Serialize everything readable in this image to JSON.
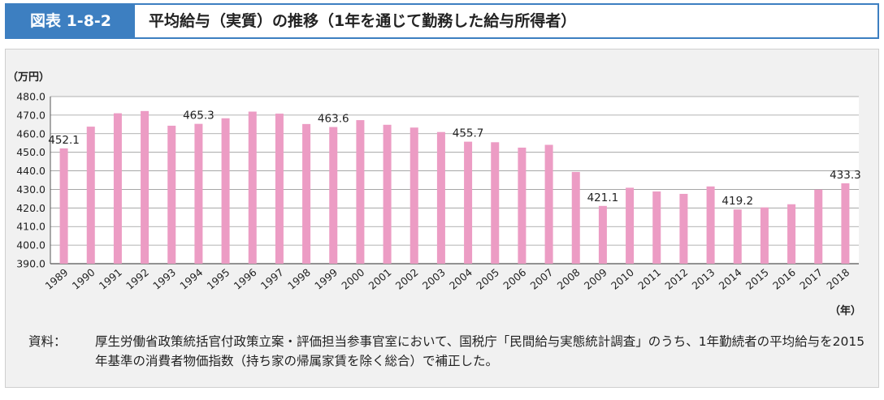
{
  "figure_label": "図表 1-8-2",
  "figure_title": "平均給与（実質）の推移（1年を通じて勤務した給与所得者）",
  "note_head": "資料：",
  "note_body": "厚生労働省政策統括官付政策立案・評価担当参事官室において、国税庁「民間給与実態統計調査」のうち、1年勤続者の平均給与を2015年基準の消費者物価指数（持ち家の帰属家賃を除く総合）で補正した。",
  "colors": {
    "bar": "#ec9cc4",
    "accent": "#3d7fc1",
    "panel": "#f1f1f1"
  },
  "chart_data": {
    "type": "bar",
    "ylabel": "（万円）",
    "xlabel": "（年）",
    "ylim": [
      390.0,
      480.0
    ],
    "yticks": [
      "390.0",
      "400.0",
      "410.0",
      "420.0",
      "430.0",
      "440.0",
      "450.0",
      "460.0",
      "470.0",
      "480.0"
    ],
    "grid": true,
    "categories": [
      "1989",
      "1990",
      "1991",
      "1992",
      "1993",
      "1994",
      "1995",
      "1996",
      "1997",
      "1998",
      "1999",
      "2000",
      "2001",
      "2002",
      "2003",
      "2004",
      "2005",
      "2006",
      "2007",
      "2008",
      "2009",
      "2010",
      "2011",
      "2012",
      "2013",
      "2014",
      "2015",
      "2016",
      "2017",
      "2018"
    ],
    "values": [
      452.1,
      463.8,
      471.0,
      472.2,
      464.3,
      465.3,
      468.3,
      471.9,
      470.8,
      465.2,
      463.6,
      467.3,
      464.8,
      463.3,
      460.9,
      455.7,
      455.4,
      452.5,
      454.0,
      439.4,
      421.1,
      430.9,
      428.9,
      427.6,
      431.6,
      419.2,
      420.3,
      422.0,
      429.9,
      433.3
    ],
    "labels": [
      {
        "category": "1989",
        "text": "452.1"
      },
      {
        "category": "1994",
        "text": "465.3"
      },
      {
        "category": "1999",
        "text": "463.6"
      },
      {
        "category": "2004",
        "text": "455.7"
      },
      {
        "category": "2009",
        "text": "421.1"
      },
      {
        "category": "2014",
        "text": "419.2"
      },
      {
        "category": "2018",
        "text": "433.3"
      }
    ]
  }
}
